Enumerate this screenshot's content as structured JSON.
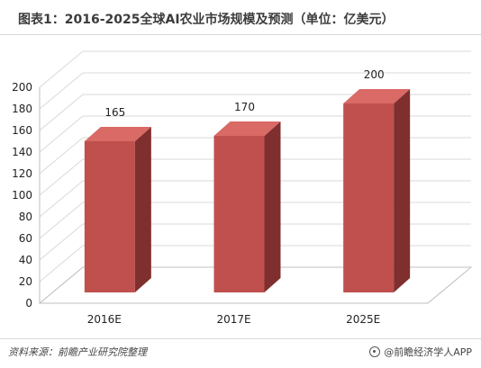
{
  "title": "图表1：2016-2025全球AI农业市场规模及预测（单位：亿美元）",
  "footer": {
    "source": "资料来源：前瞻产业研究院整理",
    "brand": "@前瞻经济学人APP",
    "brand_icon": "logo-icon"
  },
  "colors": {
    "bar_front": "#c0504d",
    "bar_side": "#7f2f2d",
    "bar_top": "#d96a66",
    "grid": "#d9d9d9",
    "axis_text": "#222222"
  },
  "chart_data": {
    "type": "bar",
    "style": "3d-column",
    "categories": [
      "2016E",
      "2017E",
      "2025E"
    ],
    "values": [
      165,
      170,
      200
    ],
    "data_labels": [
      "165",
      "170",
      "200"
    ],
    "ylim": [
      0,
      200
    ],
    "yticks": [
      0,
      20,
      40,
      60,
      80,
      100,
      120,
      140,
      160,
      180,
      200
    ],
    "grid": true,
    "legend": "none",
    "xlabel": "",
    "ylabel": ""
  }
}
